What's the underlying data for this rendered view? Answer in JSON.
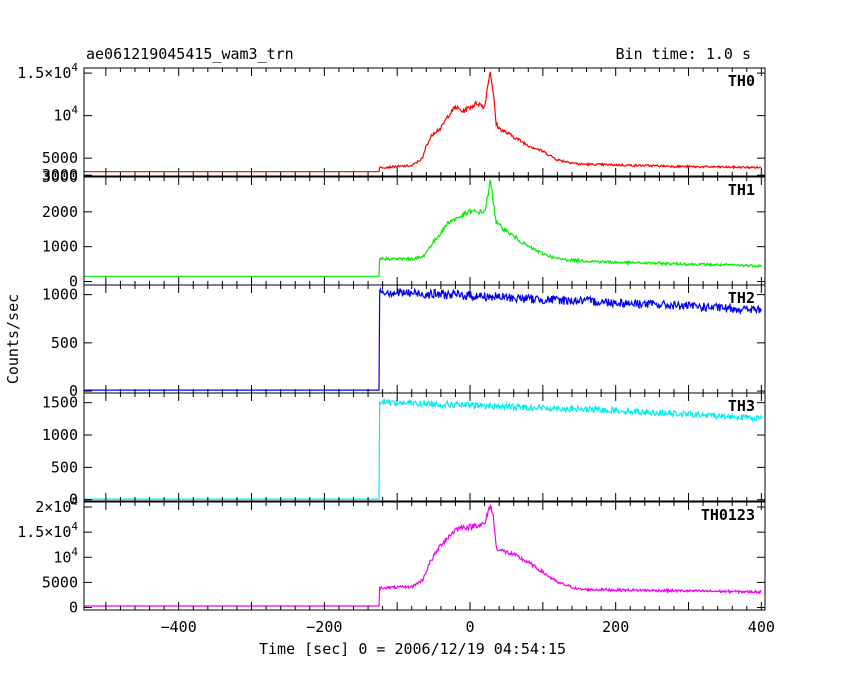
{
  "header": {
    "title": "ae061219045415_wam3_trn",
    "bin_time": "Bin time: 1.0 s"
  },
  "chart_data": {
    "type": "line",
    "xlabel": "Time [sec] 0 = 2006/12/19 04:54:15",
    "ylabel": "Counts/sec",
    "xlim": [
      -530,
      405
    ],
    "x_ticks": [
      -400,
      -200,
      0,
      200,
      400
    ],
    "x_tick_labels": [
      "−400",
      "−200",
      "0",
      "200",
      "400"
    ],
    "panels": [
      {
        "name": "TH0",
        "color": "#ff0000",
        "ylim": [
          2900,
          15600
        ],
        "y_ticks": [
          3000,
          5000,
          10000,
          15000
        ],
        "y_tick_labels": [
          "3000",
          "5000",
          "10^4",
          "1.5×10^4"
        ],
        "series": {
          "x": [
            -530,
            -125,
            -124,
            -80,
            -65,
            -60,
            -50,
            -40,
            -30,
            -20,
            -10,
            0,
            10,
            20,
            25,
            28,
            32,
            36,
            40,
            60,
            80,
            100,
            120,
            150,
            200,
            300,
            400
          ],
          "values": [
            3400,
            3400,
            3900,
            4100,
            5000,
            6500,
            8000,
            8500,
            10000,
            11000,
            10500,
            11000,
            11500,
            11000,
            14000,
            15300,
            12500,
            9000,
            8500,
            7500,
            6500,
            5800,
            4800,
            4300,
            4200,
            4000,
            3900
          ]
        }
      },
      {
        "name": "TH1",
        "color": "#00ee00",
        "ylim": [
          -100,
          3000
        ],
        "y_ticks": [
          0,
          1000,
          2000,
          3000
        ],
        "y_tick_labels": [
          "0",
          "1000",
          "2000",
          "3000"
        ],
        "series": {
          "x": [
            -530,
            -125,
            -124,
            -80,
            -65,
            -55,
            -40,
            -30,
            -20,
            -10,
            0,
            10,
            20,
            25,
            28,
            32,
            36,
            40,
            60,
            80,
            100,
            120,
            150,
            200,
            300,
            400
          ],
          "values": [
            150,
            150,
            650,
            650,
            700,
            1000,
            1400,
            1700,
            1800,
            1900,
            2000,
            2000,
            2000,
            2500,
            2900,
            2300,
            1700,
            1600,
            1300,
            1000,
            800,
            650,
            600,
            550,
            500,
            450
          ]
        }
      },
      {
        "name": "TH2",
        "color": "#0000ee",
        "ylim": [
          -20,
          1100
        ],
        "y_ticks": [
          0,
          500,
          1000
        ],
        "y_tick_labels": [
          "0",
          "500",
          "1000"
        ],
        "series": {
          "x": [
            -530,
            -125,
            -124,
            -100,
            0,
            100,
            200,
            300,
            400
          ],
          "values": [
            10,
            10,
            1040,
            1020,
            990,
            950,
            920,
            880,
            840
          ]
        }
      },
      {
        "name": "TH3",
        "color": "#00eeee",
        "ylim": [
          -20,
          1650
        ],
        "y_ticks": [
          0,
          500,
          1000,
          1500
        ],
        "y_tick_labels": [
          "0",
          "500",
          "1000",
          "1500"
        ],
        "series": {
          "x": [
            -530,
            -125,
            -124,
            -100,
            0,
            100,
            200,
            300,
            400
          ],
          "values": [
            10,
            10,
            1520,
            1500,
            1460,
            1420,
            1380,
            1320,
            1260
          ]
        }
      },
      {
        "name": "TH0123",
        "color": "#ee00ee",
        "ylim": [
          -500,
          21000
        ],
        "y_ticks": [
          0,
          5000,
          10000,
          15000,
          20000
        ],
        "y_tick_labels": [
          "0",
          "5000",
          "10^4",
          "1.5×10^4",
          "2×10^4"
        ],
        "series": {
          "x": [
            -530,
            -125,
            -124,
            -80,
            -65,
            -55,
            -40,
            -30,
            -20,
            -10,
            0,
            10,
            20,
            25,
            28,
            32,
            36,
            40,
            60,
            80,
            100,
            120,
            150,
            200,
            300,
            400
          ],
          "values": [
            300,
            300,
            3900,
            4100,
            5500,
            9000,
            12500,
            14000,
            15500,
            16000,
            16000,
            16500,
            16500,
            19000,
            20500,
            18000,
            12000,
            11500,
            10500,
            9000,
            7000,
            5000,
            3600,
            3500,
            3300,
            3100
          ]
        }
      }
    ],
    "grid": false,
    "legend": "none"
  }
}
